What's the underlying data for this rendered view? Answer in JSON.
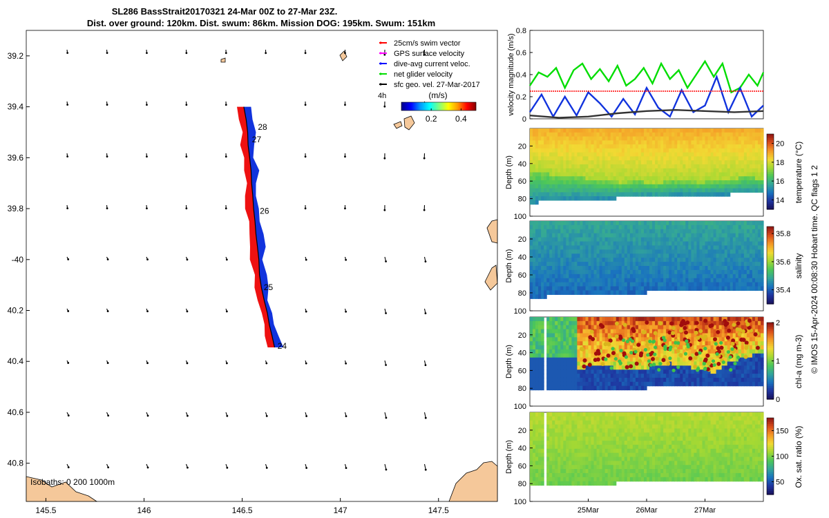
{
  "header": {
    "line1": "SL286 BassStrait20170321 24-Mar 00Z to 27-Mar 23Z.",
    "line2": "Dist. over ground: 120km. Dist. swum: 86km. Mission DOG: 195km. Swum: 151km"
  },
  "credit": "© IMOS 15-Apr-2024 00:08:30 Hobart time. QC flags 1  2",
  "colors": {
    "swim": "#ff0000",
    "gps": "#ff00ff",
    "dive": "#0000ff",
    "net": "#00dd00",
    "geo": "#000000",
    "land": "#f5c89a",
    "track_red": "#ee1111",
    "track_blue": "#1133dd"
  },
  "map": {
    "lon_ticks": [
      "145.5",
      "146",
      "146.5",
      "147",
      "147.5"
    ],
    "lon_values": [
      145.5,
      146.0,
      146.5,
      147.0,
      147.5
    ],
    "lat_ticks": [
      "39.2",
      "39.4",
      "39.6",
      "39.8",
      "-40",
      "40.2",
      "40.4",
      "40.6",
      "40.8"
    ],
    "lat_values": [
      39.2,
      39.4,
      39.6,
      39.8,
      40.0,
      40.2,
      40.4,
      40.6,
      40.8
    ],
    "lon_range": [
      145.4,
      147.8
    ],
    "lat_range": [
      39.1,
      40.95
    ],
    "legend": [
      {
        "label": "25cm/s swim vector",
        "color": "#ff0000"
      },
      {
        "label": "GPS surface velocity",
        "color": "#ff00ff"
      },
      {
        "label": "dive-avg current veloc.",
        "color": "#0000ff"
      },
      {
        "label": "net glider velocity",
        "color": "#00dd00"
      },
      {
        "label": "sfc geo. vel. 27-Mar-2017",
        "color": "#000000"
      }
    ],
    "colorbar_label": "(m/s)",
    "colorbar_ticks": [
      "0.2",
      "0.4"
    ],
    "colorbar_tick_values": [
      0.2,
      0.4
    ],
    "colorbar_range": [
      0,
      0.5
    ],
    "time_label": "4h",
    "isobaths": "Isobaths: 0   200  1000m",
    "day_labels": [
      {
        "text": "28",
        "lon": 146.58,
        "lat": 39.49
      },
      {
        "text": "27",
        "lon": 146.55,
        "lat": 39.54
      },
      {
        "text": "26",
        "lon": 146.59,
        "lat": 39.82
      },
      {
        "text": "25",
        "lon": 146.61,
        "lat": 40.12
      },
      {
        "text": "24",
        "lon": 146.68,
        "lat": 40.35
      }
    ],
    "track": [
      [
        146.665,
        40.345
      ],
      [
        146.652,
        40.3
      ],
      [
        146.638,
        40.255
      ],
      [
        146.628,
        40.21
      ],
      [
        146.612,
        40.16
      ],
      [
        146.598,
        40.11
      ],
      [
        146.588,
        40.06
      ],
      [
        146.585,
        40.0
      ],
      [
        146.578,
        39.95
      ],
      [
        146.57,
        39.9
      ],
      [
        146.565,
        39.85
      ],
      [
        146.558,
        39.8
      ],
      [
        146.554,
        39.75
      ],
      [
        146.548,
        39.7
      ],
      [
        146.545,
        39.65
      ],
      [
        146.538,
        39.6
      ],
      [
        146.53,
        39.55
      ],
      [
        146.528,
        39.5
      ],
      [
        146.52,
        39.45
      ],
      [
        146.508,
        39.4
      ]
    ]
  },
  "chart_data": [
    {
      "type": "line",
      "title": "velocity magnitude",
      "ylabel": "velocity magnitude (m/s)",
      "ylim": [
        0,
        0.8
      ],
      "yticks": [
        "0",
        "0.2",
        "0.4",
        "0.6",
        "0.8"
      ],
      "ytick_values": [
        0,
        0.2,
        0.4,
        0.6,
        0.8
      ],
      "xlim": [
        0,
        4
      ],
      "series": [
        {
          "name": "net glider velocity",
          "color": "#00dd00",
          "x": [
            0,
            0.15,
            0.3,
            0.45,
            0.6,
            0.75,
            0.9,
            1.05,
            1.2,
            1.35,
            1.5,
            1.65,
            1.8,
            1.95,
            2.1,
            2.25,
            2.4,
            2.55,
            2.7,
            2.85,
            3.0,
            3.15,
            3.3,
            3.45,
            3.6,
            3.75,
            3.9,
            4.0
          ],
          "y": [
            0.3,
            0.42,
            0.38,
            0.46,
            0.28,
            0.44,
            0.5,
            0.36,
            0.45,
            0.34,
            0.48,
            0.3,
            0.36,
            0.46,
            0.32,
            0.5,
            0.36,
            0.44,
            0.28,
            0.4,
            0.52,
            0.38,
            0.5,
            0.24,
            0.28,
            0.4,
            0.3,
            0.42
          ]
        },
        {
          "name": "dive-avg current veloc.",
          "color": "#1133dd",
          "x": [
            0,
            0.2,
            0.4,
            0.6,
            0.8,
            1.0,
            1.2,
            1.4,
            1.6,
            1.8,
            2.0,
            2.2,
            2.4,
            2.6,
            2.8,
            3.0,
            3.2,
            3.4,
            3.6,
            3.8,
            4.0
          ],
          "y": [
            0.06,
            0.22,
            0.02,
            0.2,
            0.03,
            0.24,
            0.14,
            0.02,
            0.18,
            0.04,
            0.28,
            0.1,
            0.02,
            0.26,
            0.06,
            0.12,
            0.38,
            0.06,
            0.28,
            0.02,
            0.12
          ]
        },
        {
          "name": "sfc geo. vel.",
          "color": "#333333",
          "x": [
            0,
            0.5,
            1.0,
            1.5,
            2.0,
            2.5,
            3.0,
            3.5,
            4.0
          ],
          "y": [
            0.03,
            0.01,
            0.02,
            0.05,
            0.07,
            0.08,
            0.07,
            0.06,
            0.07
          ]
        },
        {
          "name": "25cm/s reference",
          "color": "#ff0000",
          "style": "dotted",
          "x": [
            0,
            4
          ],
          "y": [
            0.25,
            0.25
          ]
        }
      ]
    },
    {
      "type": "heatmap",
      "title": "temperature",
      "ylabel": "Depth (m)",
      "cbar_label": "temperature (°C)",
      "yticks": [
        "20",
        "40",
        "60",
        "80",
        "100"
      ],
      "ytick_values": [
        20,
        40,
        60,
        80,
        100
      ],
      "ylim": [
        0,
        100
      ],
      "cbar_ticks": [
        "20",
        "18",
        "16",
        "14"
      ],
      "cbar_tick_values": [
        20,
        18,
        16,
        14
      ],
      "cbar_range": [
        13,
        21
      ],
      "bottom_depth": [
        85,
        83,
        82,
        81,
        80,
        80,
        79,
        78,
        78,
        77,
        76,
        76,
        75,
        75,
        74,
        74
      ],
      "mixed_layer_depth": [
        50,
        52,
        55,
        55,
        58,
        60,
        62,
        60,
        64,
        60,
        60,
        62,
        60,
        58,
        55,
        58
      ],
      "surface_value": 19.0,
      "layer_value": 17.0,
      "deep_value": 15.2
    },
    {
      "type": "heatmap",
      "title": "salinity",
      "ylabel": "Depth (m)",
      "cbar_label": "salinity",
      "yticks": [
        "20",
        "40",
        "60",
        "80",
        "100"
      ],
      "ytick_values": [
        20,
        40,
        60,
        80,
        100
      ],
      "ylim": [
        0,
        100
      ],
      "cbar_ticks": [
        "35.8",
        "35.6",
        "35.4"
      ],
      "cbar_tick_values": [
        35.8,
        35.6,
        35.4
      ],
      "cbar_range": [
        35.3,
        35.85
      ],
      "bottom_depth": [
        85,
        84,
        83,
        82,
        82,
        81,
        80,
        80,
        79,
        78,
        78,
        77,
        77,
        76,
        76,
        75
      ],
      "surface_value": 35.55,
      "deep_value": 35.47
    },
    {
      "type": "heatmap",
      "title": "chl-a",
      "ylabel": "Depth (m)",
      "cbar_label": "chl-a (mg m-3)",
      "yticks": [
        "20",
        "40",
        "60",
        "80",
        "100"
      ],
      "ytick_values": [
        20,
        40,
        60,
        80,
        100
      ],
      "ylim": [
        0,
        100
      ],
      "cbar_ticks": [
        "2",
        "1",
        "0"
      ],
      "cbar_tick_values": [
        2,
        1,
        0
      ],
      "cbar_range": [
        0,
        2
      ],
      "bottom_depth": [
        82,
        82,
        82,
        81,
        81,
        80,
        80,
        80,
        79,
        79,
        78,
        78,
        78,
        77,
        77,
        76
      ],
      "bloom_base_depth": [
        45,
        45,
        60,
        58,
        56,
        55,
        60,
        58,
        56,
        52,
        55,
        60,
        62,
        50,
        45,
        40
      ],
      "surface_value": 1.8,
      "bloom_value": 1.5,
      "deep_value": 0.3
    },
    {
      "type": "heatmap",
      "title": "oxygen saturation",
      "ylabel": "Depth (m)",
      "cbar_label": "Ox. sat. ratio (%)",
      "xlabel_ticks": [
        "25Mar",
        "26Mar",
        "27Mar"
      ],
      "xtick_positions": [
        1,
        2,
        3
      ],
      "yticks": [
        "20",
        "40",
        "60",
        "80",
        "100"
      ],
      "ytick_values": [
        20,
        40,
        60,
        80,
        100
      ],
      "ylim": [
        0,
        100
      ],
      "cbar_ticks": [
        "150",
        "100",
        "50"
      ],
      "cbar_tick_values": [
        150,
        100,
        50
      ],
      "cbar_range": [
        25,
        175
      ],
      "bottom_depth": [
        82,
        82,
        81,
        81,
        80,
        80,
        79,
        79,
        78,
        78,
        78,
        77,
        77,
        76,
        76,
        76
      ],
      "surface_value": 112,
      "deep_value": 95
    }
  ]
}
